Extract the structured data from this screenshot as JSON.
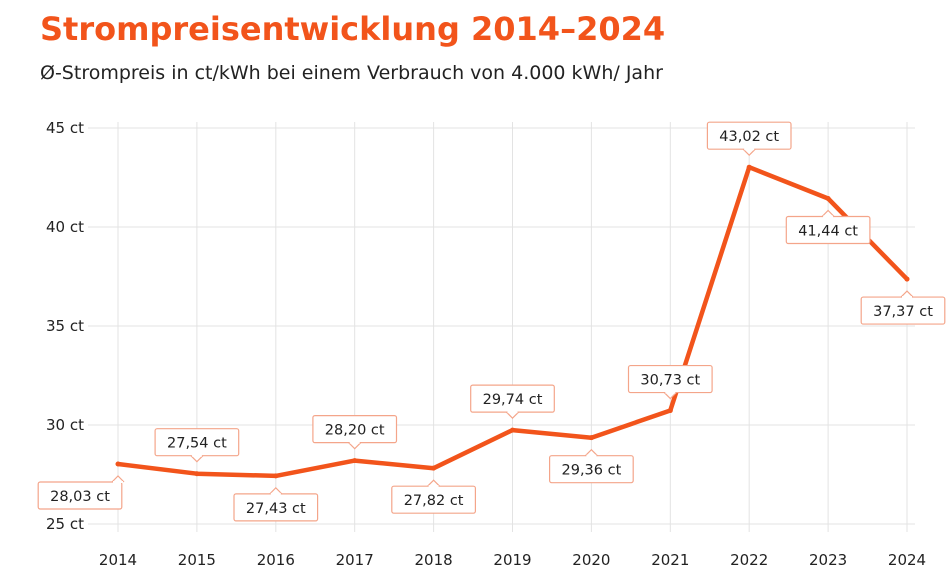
{
  "chart_data": {
    "type": "line",
    "title": "Strompreisentwicklung 2014–2024",
    "subtitle": "Ø-Strompreis in ct/kWh bei einem Verbrauch von 4.000 kWh/ Jahr",
    "categories": [
      "2014",
      "2015",
      "2016",
      "2017",
      "2018",
      "2019",
      "2020",
      "2021",
      "2022",
      "2023",
      "2024"
    ],
    "values": [
      28.03,
      27.54,
      27.43,
      28.2,
      27.82,
      29.74,
      29.36,
      30.73,
      43.02,
      41.44,
      37.37
    ],
    "data_labels": [
      "28,03 ct",
      "27,54 ct",
      "27,43 ct",
      "28,20 ct",
      "27,82 ct",
      "29,74 ct",
      "29,36 ct",
      "30,73 ct",
      "43,02 ct",
      "41,44 ct",
      "37,37 ct"
    ],
    "label_position": [
      "below",
      "above",
      "below",
      "above",
      "below",
      "above",
      "below",
      "above",
      "above",
      "below",
      "below"
    ],
    "ylim": [
      25,
      45
    ],
    "yticks": [
      25,
      30,
      35,
      40,
      45
    ],
    "ytick_labels": [
      "25 ct",
      "30 ct",
      "35 ct",
      "40 ct",
      "45 ct"
    ],
    "grid": true,
    "line_color": "#f2541b",
    "label_border_color": "#f4a58a"
  }
}
